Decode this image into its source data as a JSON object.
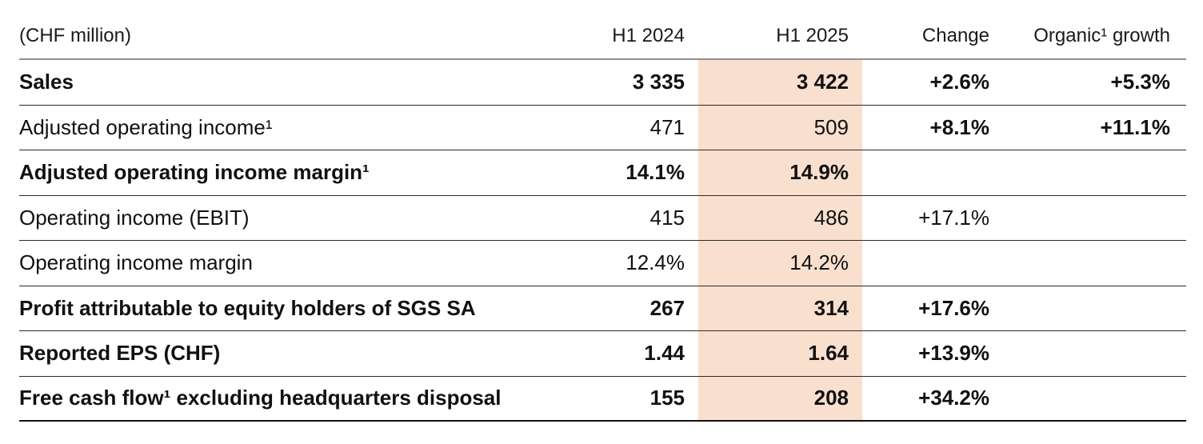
{
  "table": {
    "unit_label": "(CHF million)",
    "columns": {
      "h1_2024": "H1 2024",
      "h1_2025": "H1 2025",
      "change": "Change",
      "organic": "Organic¹ growth"
    },
    "highlight_color": "#f9dfce",
    "rows": [
      {
        "label": "Sales",
        "bold": true,
        "h1_2024": "3 335",
        "h1_2025": "3 422",
        "change": "+2.6%",
        "organic": "+5.3%",
        "change_bold": true
      },
      {
        "label": "Adjusted operating income¹",
        "bold": false,
        "h1_2024": "471",
        "h1_2025": "509",
        "change": "+8.1%",
        "organic": "+11.1%",
        "change_bold": true
      },
      {
        "label": "Adjusted operating income margin¹",
        "bold": true,
        "h1_2024": "14.1%",
        "h1_2025": "14.9%",
        "change": "",
        "organic": "",
        "change_bold": false
      },
      {
        "label": "Operating income (EBIT)",
        "bold": false,
        "h1_2024": "415",
        "h1_2025": "486",
        "change": "+17.1%",
        "organic": "",
        "change_bold": false
      },
      {
        "label": "Operating income margin",
        "bold": false,
        "h1_2024": "12.4%",
        "h1_2025": "14.2%",
        "change": "",
        "organic": "",
        "change_bold": false
      },
      {
        "label": "Profit attributable to equity holders of SGS SA",
        "bold": true,
        "h1_2024": "267",
        "h1_2025": "314",
        "change": "+17.6%",
        "organic": "",
        "change_bold": true
      },
      {
        "label": "Reported EPS (CHF)",
        "bold": true,
        "h1_2024": "1.44",
        "h1_2025": "1.64",
        "change": "+13.9%",
        "organic": "",
        "change_bold": true
      },
      {
        "label": "Free cash flow¹ excluding headquarters disposal",
        "bold": true,
        "h1_2024": "155",
        "h1_2025": "208",
        "change": "+34.2%",
        "organic": "",
        "change_bold": true
      }
    ]
  }
}
